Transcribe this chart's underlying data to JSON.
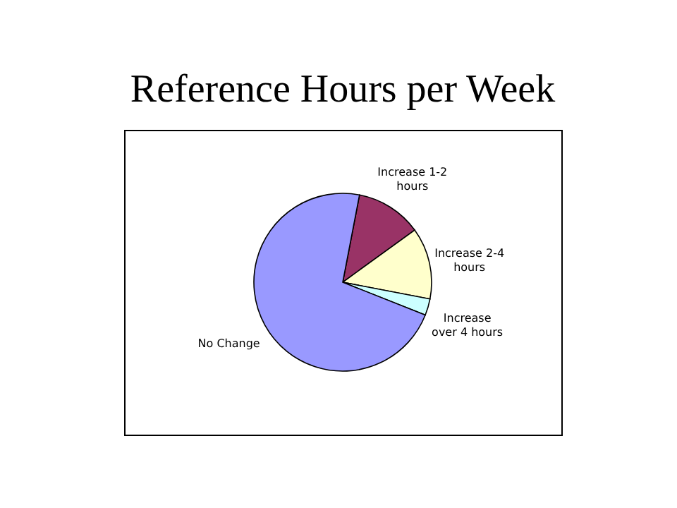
{
  "chart_data": {
    "type": "pie",
    "title": "Reference Hours per Week",
    "categories": [
      "Increase 1-2 hours",
      "Increase 2-4 hours",
      "Increase over 4 hours",
      "No Change"
    ],
    "values": [
      12,
      13,
      3,
      72
    ],
    "colors": [
      "#993366",
      "#ffffcc",
      "#ccffff",
      "#9999ff"
    ],
    "legend": false
  }
}
